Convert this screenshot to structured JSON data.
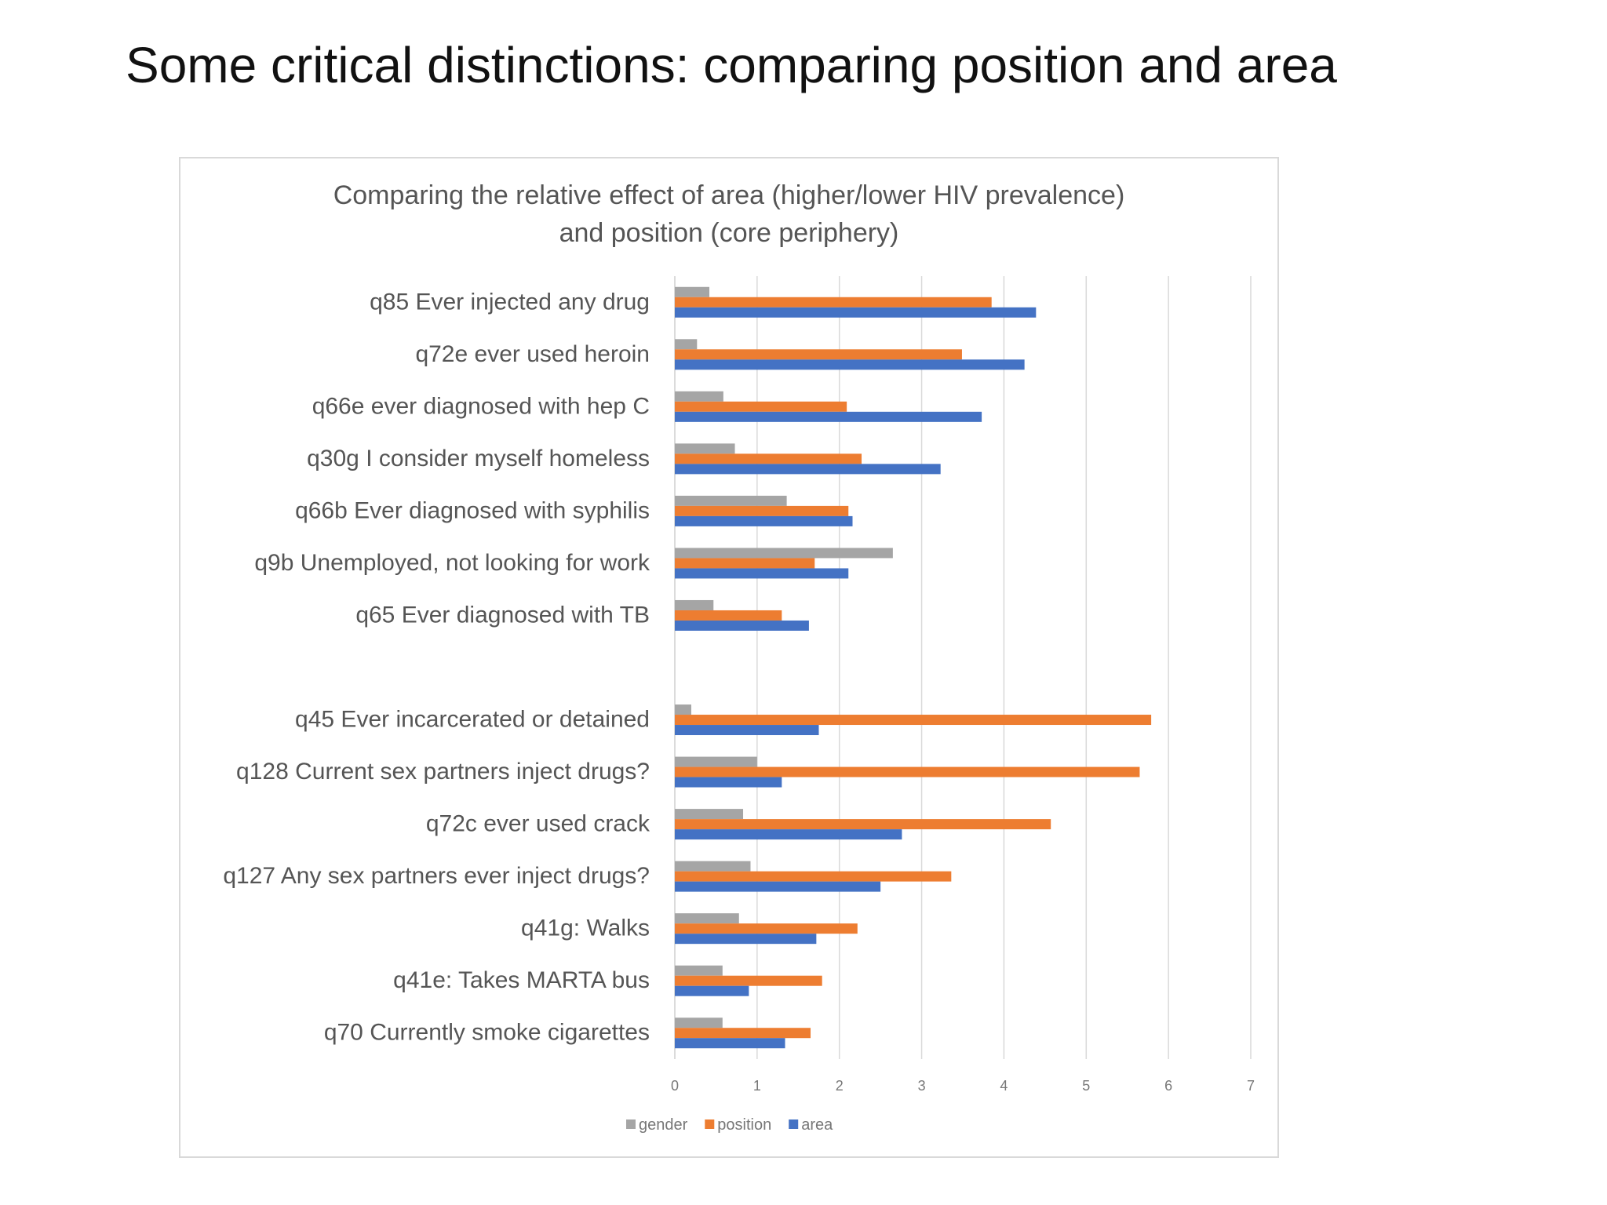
{
  "slide": {
    "title": "Some critical distinctions: comparing position and area"
  },
  "chart_data": {
    "type": "bar",
    "orientation": "horizontal",
    "title_lines": [
      "Comparing the relative effect of area (higher/lower HIV prevalence)",
      "and position (core periphery)"
    ],
    "categories": [
      "q85  Ever injected any drug",
      "q72e  ever used heroin",
      "q66e  ever diagnosed with hep C",
      "q30g I consider myself homeless",
      "q66b  Ever diagnosed with syphilis",
      "q9b Unemployed, not looking for work",
      "q65  Ever diagnosed with TB",
      "",
      "q45  Ever incarcerated or detained",
      "q128  Current sex partners inject drugs?",
      "q72c ever used crack",
      "q127 Any sex partners ever inject drugs?",
      "q41g: Walks",
      "q41e: Takes MARTA bus",
      "q70  Currently smoke cigarettes"
    ],
    "series": [
      {
        "name": "gender",
        "color": "#a5a5a5",
        "values": [
          0.42,
          0.27,
          0.59,
          0.73,
          1.36,
          2.65,
          0.47,
          null,
          0.2,
          1.0,
          0.83,
          0.92,
          0.78,
          0.58,
          0.58
        ]
      },
      {
        "name": "position",
        "color": "#ed7d31",
        "values": [
          3.85,
          3.49,
          2.09,
          2.27,
          2.11,
          1.7,
          1.3,
          null,
          5.79,
          5.65,
          4.57,
          3.36,
          2.22,
          1.79,
          1.65
        ]
      },
      {
        "name": "area",
        "color": "#4472c4",
        "values": [
          4.39,
          4.25,
          3.73,
          3.23,
          2.16,
          2.11,
          1.63,
          null,
          1.75,
          1.3,
          2.76,
          2.5,
          1.72,
          0.9,
          1.34
        ]
      }
    ],
    "xlim": [
      0,
      7
    ],
    "x_ticks": [
      "0",
      "1",
      "2",
      "3",
      "4",
      "5",
      "6",
      "7"
    ],
    "grid": true,
    "legend_position": "bottom"
  }
}
